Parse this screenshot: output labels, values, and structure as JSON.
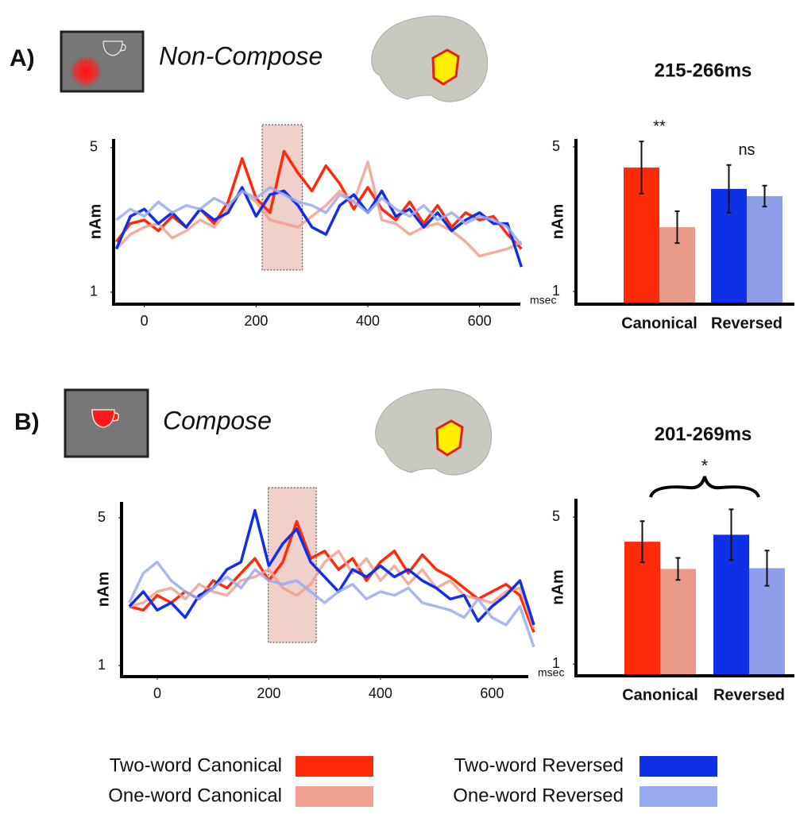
{
  "panels": [
    {
      "label": "A)",
      "condition": "Non-Compose"
    },
    {
      "label": "B)",
      "condition": "Compose"
    }
  ],
  "chart_data": [
    {
      "type": "line",
      "xlabel": "msec",
      "ylabel": "nAm",
      "x": [
        -50,
        -25,
        0,
        25,
        50,
        75,
        100,
        125,
        150,
        175,
        200,
        225,
        250,
        275,
        300,
        325,
        350,
        375,
        400,
        425,
        450,
        475,
        500,
        525,
        550,
        575,
        600,
        625,
        650,
        675
      ],
      "xlim": [
        -55,
        673
      ],
      "ylim": [
        0.67,
        5.24
      ],
      "xticks": [
        0,
        200,
        400,
        600
      ],
      "yticks": [
        1,
        5
      ],
      "highlight": [
        211,
        283
      ],
      "series": [
        {
          "name": "Two-word Canonical",
          "color": "#ff2a0a",
          "values": [
            2.4,
            2.9,
            3.0,
            2.7,
            3.1,
            2.8,
            3.3,
            2.9,
            3.5,
            4.7,
            3.6,
            3.2,
            4.9,
            4.3,
            3.8,
            4.5,
            4.0,
            3.3,
            3.9,
            3.3,
            3.0,
            3.5,
            2.9,
            3.4,
            2.8,
            3.2,
            3.0,
            3.1,
            2.6,
            2.2
          ]
        },
        {
          "name": "One-word Canonical",
          "color": "#f0a090",
          "values": [
            2.2,
            2.6,
            2.8,
            2.9,
            2.5,
            2.7,
            3.0,
            2.8,
            3.3,
            3.8,
            3.5,
            3.0,
            2.9,
            2.8,
            3.1,
            3.4,
            3.8,
            3.5,
            4.6,
            3.0,
            2.9,
            2.6,
            2.8,
            2.9,
            2.7,
            2.4,
            2.0,
            2.1,
            2.2,
            2.4
          ]
        },
        {
          "name": "Two-word Reversed",
          "color": "#1030e8",
          "values": [
            2.2,
            3.1,
            3.3,
            2.9,
            3.2,
            2.8,
            3.3,
            3.0,
            3.2,
            3.9,
            3.1,
            3.7,
            3.8,
            3.4,
            2.8,
            2.6,
            3.4,
            3.7,
            3.2,
            3.8,
            3.1,
            3.3,
            2.8,
            3.2,
            2.7,
            3.0,
            3.2,
            2.9,
            2.9,
            1.7
          ]
        },
        {
          "name": "One-word Reversed",
          "color": "#9aaaf0",
          "values": [
            3.0,
            3.3,
            3.1,
            3.5,
            3.2,
            3.4,
            3.3,
            3.6,
            3.4,
            3.8,
            3.6,
            3.9,
            3.7,
            3.5,
            3.4,
            3.2,
            3.7,
            3.5,
            3.2,
            3.6,
            3.3,
            3.1,
            3.4,
            3.0,
            3.2,
            2.9,
            3.1,
            3.0,
            2.8,
            2.3
          ]
        }
      ]
    },
    {
      "type": "bar",
      "title": "215-266ms",
      "ylabel": "nAm",
      "ylim": [
        0.65,
        5.22
      ],
      "yticks": [
        1,
        5
      ],
      "groups": [
        {
          "name": "Canonical",
          "annotation": "**",
          "values": [
            4.43,
            2.78
          ],
          "errors": [
            0.72,
            0.44
          ],
          "colors": [
            "#ff2a0a",
            "#e89a88"
          ]
        },
        {
          "name": "Reversed",
          "annotation": "ns",
          "values": [
            3.84,
            3.64
          ],
          "errors": [
            0.66,
            0.29
          ],
          "colors": [
            "#1030e8",
            "#8e9eea"
          ]
        }
      ]
    },
    {
      "type": "line",
      "xlabel": "msec",
      "ylabel": "nAm",
      "x": [
        -50,
        -25,
        0,
        25,
        50,
        75,
        100,
        125,
        150,
        175,
        200,
        225,
        250,
        275,
        300,
        325,
        350,
        375,
        400,
        425,
        450,
        475,
        500,
        525,
        550,
        575,
        600,
        625,
        650,
        675
      ],
      "xlim": [
        -64,
        665
      ],
      "ylim": [
        0.7,
        5.43
      ],
      "xticks": [
        0,
        200,
        400,
        600
      ],
      "yticks": [
        1,
        5
      ],
      "highlight": [
        199,
        285
      ],
      "series": [
        {
          "name": "Two-word Canonical",
          "color": "#ff2a0a",
          "values": [
            2.6,
            2.5,
            2.9,
            2.7,
            3.0,
            2.8,
            3.3,
            3.1,
            3.5,
            3.9,
            3.3,
            3.8,
            4.9,
            3.9,
            4.1,
            3.6,
            3.9,
            3.3,
            3.8,
            4.1,
            3.5,
            4.0,
            3.6,
            3.4,
            3.1,
            2.8,
            3.0,
            3.2,
            2.9,
            1.9
          ]
        },
        {
          "name": "One-word Canonical",
          "color": "#f0a090",
          "values": [
            2.6,
            2.7,
            3.0,
            3.1,
            2.8,
            3.2,
            3.0,
            2.9,
            3.3,
            3.4,
            3.6,
            3.1,
            2.9,
            3.2,
            3.8,
            4.1,
            3.5,
            3.9,
            3.3,
            3.7,
            3.2,
            3.6,
            3.1,
            3.3,
            2.9,
            2.8,
            2.7,
            3.0,
            3.1,
            2.0
          ]
        },
        {
          "name": "Two-word Reversed",
          "color": "#1030e8",
          "values": [
            2.6,
            3.0,
            2.5,
            2.7,
            2.3,
            2.9,
            3.1,
            3.6,
            3.8,
            5.2,
            3.7,
            4.3,
            4.7,
            3.8,
            3.4,
            3.0,
            3.6,
            3.4,
            3.7,
            3.4,
            3.6,
            3.3,
            3.1,
            2.8,
            2.9,
            2.2,
            2.6,
            2.9,
            3.3,
            2.1
          ]
        },
        {
          "name": "One-word Reversed",
          "color": "#9aaaf0",
          "values": [
            2.7,
            3.5,
            3.8,
            3.3,
            3.0,
            2.8,
            3.1,
            3.4,
            3.1,
            3.6,
            3.3,
            3.2,
            3.3,
            3.0,
            2.7,
            3.0,
            3.2,
            2.8,
            3.0,
            2.9,
            3.1,
            2.7,
            2.6,
            2.5,
            2.3,
            2.8,
            2.3,
            2.1,
            2.6,
            1.5
          ]
        }
      ]
    },
    {
      "type": "bar",
      "title": "201-269ms",
      "ylabel": "nAm",
      "ylim": [
        0.68,
        5.5
      ],
      "yticks": [
        1,
        5
      ],
      "comparison": "*",
      "groups": [
        {
          "name": "Canonical",
          "values": [
            4.33,
            3.59
          ],
          "errors": [
            0.56,
            0.3
          ],
          "colors": [
            "#ff2a0a",
            "#e89a88"
          ]
        },
        {
          "name": "Reversed",
          "values": [
            4.52,
            3.61
          ],
          "errors": [
            0.69,
            0.48
          ],
          "colors": [
            "#1030e8",
            "#8e9eea"
          ]
        }
      ]
    }
  ]
}
